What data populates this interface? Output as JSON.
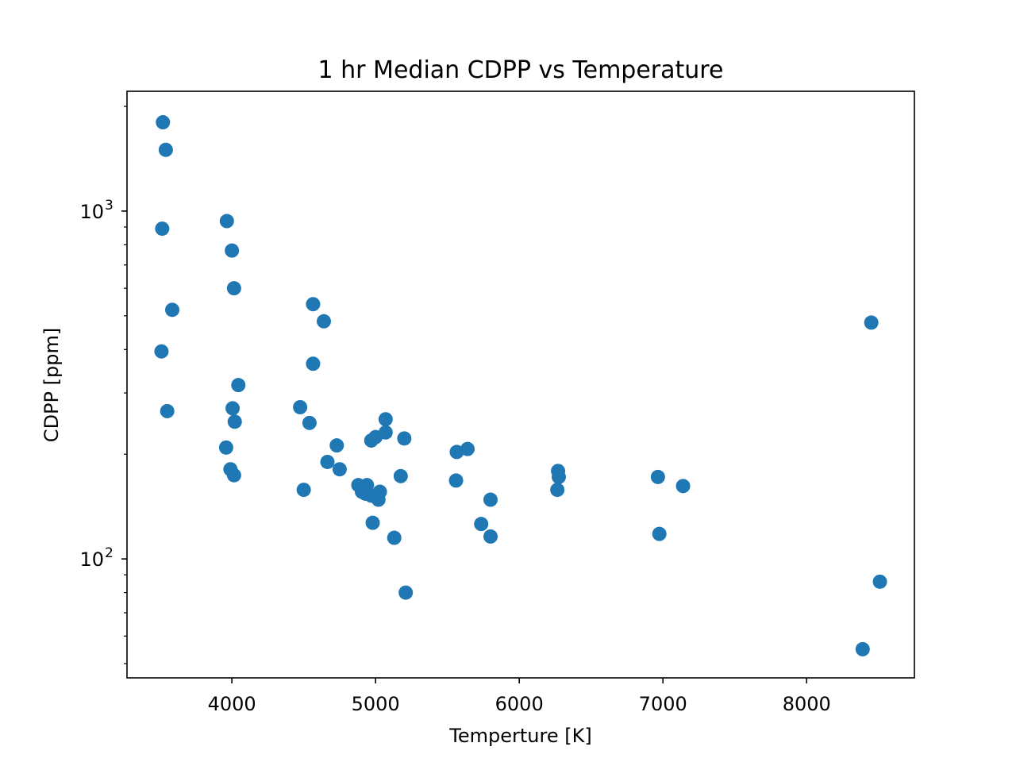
{
  "chart_data": {
    "type": "scatter",
    "title": "1 hr Median CDPP vs Temperature",
    "xlabel": "Temperture [K]",
    "ylabel": "CDPP [ppm]",
    "xlim": [
      3270,
      8750
    ],
    "ylim": [
      45.5,
      2210
    ],
    "yscale": "log",
    "grid": false,
    "color": "#1f77b4",
    "x_ticks": [
      {
        "value": 4000,
        "label": "4000"
      },
      {
        "value": 5000,
        "label": "5000"
      },
      {
        "value": 6000,
        "label": "6000"
      },
      {
        "value": 7000,
        "label": "7000"
      },
      {
        "value": 8000,
        "label": "8000"
      }
    ],
    "y_ticks": [
      {
        "value": 100,
        "base": "10",
        "exp": "2"
      },
      {
        "value": 1000,
        "base": "10",
        "exp": "3"
      }
    ],
    "y_minor_ticks": [
      50,
      60,
      70,
      80,
      90,
      200,
      300,
      400,
      500,
      600,
      700,
      800,
      900,
      2000
    ],
    "points": [
      {
        "x": 3520,
        "y": 1800
      },
      {
        "x": 3540,
        "y": 1500
      },
      {
        "x": 3515,
        "y": 890
      },
      {
        "x": 3585,
        "y": 520
      },
      {
        "x": 3510,
        "y": 395
      },
      {
        "x": 3550,
        "y": 266
      },
      {
        "x": 3965,
        "y": 936
      },
      {
        "x": 4000,
        "y": 770
      },
      {
        "x": 4015,
        "y": 600
      },
      {
        "x": 4045,
        "y": 316
      },
      {
        "x": 4005,
        "y": 271
      },
      {
        "x": 4020,
        "y": 248
      },
      {
        "x": 3960,
        "y": 209
      },
      {
        "x": 3990,
        "y": 181
      },
      {
        "x": 4015,
        "y": 174
      },
      {
        "x": 4565,
        "y": 540
      },
      {
        "x": 4640,
        "y": 482
      },
      {
        "x": 4565,
        "y": 364
      },
      {
        "x": 4475,
        "y": 273
      },
      {
        "x": 4540,
        "y": 246
      },
      {
        "x": 4730,
        "y": 212
      },
      {
        "x": 4665,
        "y": 190
      },
      {
        "x": 4750,
        "y": 181
      },
      {
        "x": 4500,
        "y": 158
      },
      {
        "x": 5070,
        "y": 252
      },
      {
        "x": 5070,
        "y": 231
      },
      {
        "x": 5000,
        "y": 224
      },
      {
        "x": 4970,
        "y": 219
      },
      {
        "x": 5200,
        "y": 222
      },
      {
        "x": 5175,
        "y": 173
      },
      {
        "x": 4880,
        "y": 163
      },
      {
        "x": 4940,
        "y": 163
      },
      {
        "x": 4905,
        "y": 156
      },
      {
        "x": 4930,
        "y": 154
      },
      {
        "x": 4970,
        "y": 152
      },
      {
        "x": 5030,
        "y": 156
      },
      {
        "x": 5020,
        "y": 148
      },
      {
        "x": 4980,
        "y": 127
      },
      {
        "x": 5130,
        "y": 115
      },
      {
        "x": 5210,
        "y": 80
      },
      {
        "x": 5565,
        "y": 203
      },
      {
        "x": 5640,
        "y": 207
      },
      {
        "x": 5560,
        "y": 168
      },
      {
        "x": 5800,
        "y": 148
      },
      {
        "x": 5735,
        "y": 126
      },
      {
        "x": 5800,
        "y": 116
      },
      {
        "x": 6270,
        "y": 179
      },
      {
        "x": 6275,
        "y": 172
      },
      {
        "x": 6265,
        "y": 158
      },
      {
        "x": 6965,
        "y": 172
      },
      {
        "x": 7140,
        "y": 162
      },
      {
        "x": 6975,
        "y": 118
      },
      {
        "x": 8450,
        "y": 478
      },
      {
        "x": 8510,
        "y": 86
      },
      {
        "x": 8390,
        "y": 55
      }
    ]
  }
}
